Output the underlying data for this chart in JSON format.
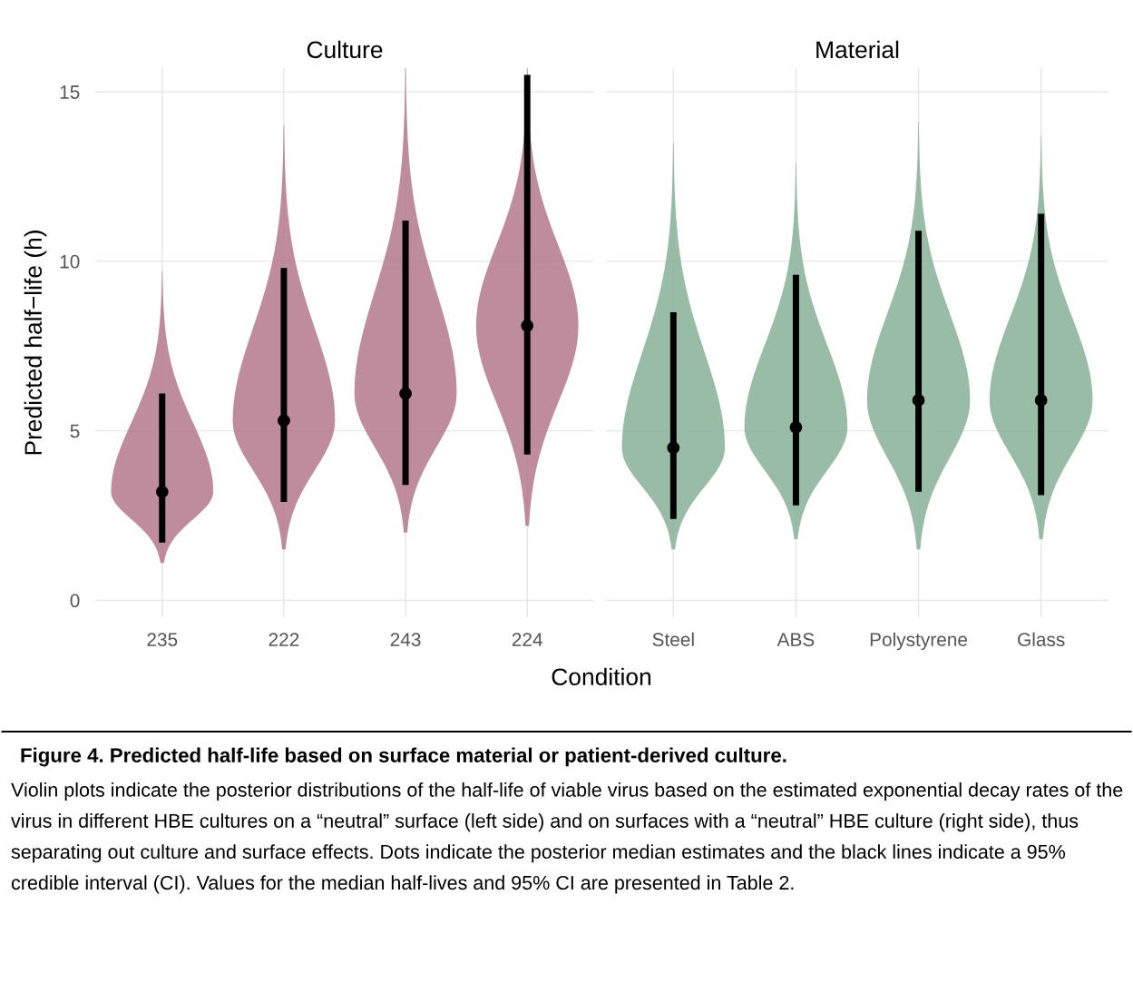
{
  "chart_data": [
    {
      "type": "scatter",
      "title": "Culture",
      "ylabel": "Predicted half−life (h)",
      "xlabel": "Condition",
      "categories": [
        "235",
        "222",
        "243",
        "224"
      ],
      "series": [
        {
          "color": "#000000",
          "values": [
            3.2,
            5.3,
            6.1,
            8.1
          ],
          "errors": [
            [
              1.7,
              6.1
            ],
            [
              2.9,
              9.8
            ],
            [
              3.4,
              11.2
            ],
            [
              4.3,
              15.5
            ]
          ]
        }
      ],
      "marker": "circle",
      "ylim": [
        -0.5,
        15.7
      ],
      "yticks": [
        0,
        5,
        10,
        15
      ],
      "grid": true,
      "annotations": [
        "Figure 4. Predicted half-life based on surface material or patient-derived culture.",
        "Violin plots indicate the posterior distributions of the half-life of viable virus based on the estimated exponential decay rates of the virus in different HBE cultures on a “neutral” surface (left side) and on surfaces with a “neutral” HBE culture (right side), thus separating out culture and surface effects. Dots indicate the posterior median estimates and the black lines indicate a 95% credible interval (CI). Values for the median half-lives and 95% CI are presented in Table 2."
      ]
    },
    {
      "type": "scatter",
      "title": "Material",
      "categories": [
        "Steel",
        "ABS",
        "Polystyrene",
        "Glass"
      ],
      "series": [
        {
          "color": "#000000",
          "values": [
            4.5,
            5.1,
            5.9,
            5.9
          ],
          "errors": [
            [
              2.4,
              8.5
            ],
            [
              2.8,
              9.6
            ],
            [
              3.2,
              10.9
            ],
            [
              3.1,
              11.4
            ]
          ]
        }
      ],
      "marker": "circle",
      "ylim": [
        -0.5,
        15.7
      ],
      "yticks": [
        0,
        5,
        10,
        15
      ],
      "grid": true,
      "tick_labels": "x"
    }
  ]
}
